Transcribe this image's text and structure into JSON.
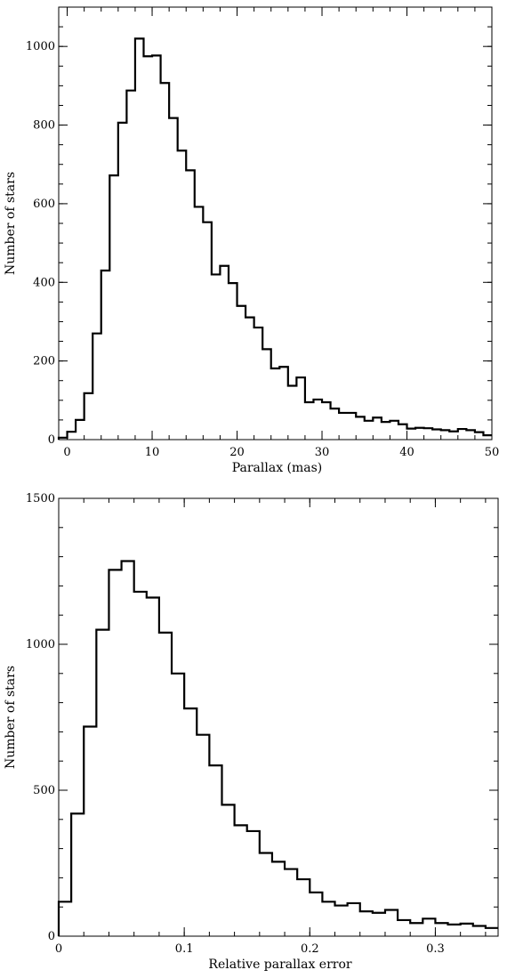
{
  "colors": {
    "line": "#000000",
    "background": "#ffffff"
  },
  "chart_data": [
    {
      "type": "histogram",
      "xlabel": "Parallax (mas)",
      "ylabel": "Number of stars",
      "xlim": [
        -1,
        50
      ],
      "ylim": [
        0,
        1100
      ],
      "x_major_ticks": [
        0,
        10,
        20,
        30,
        40,
        50
      ],
      "x_tick_labels": [
        "0",
        "10",
        "20",
        "30",
        "40",
        "50"
      ],
      "x_minor_step": 2,
      "y_major_ticks": [
        0,
        200,
        400,
        600,
        800,
        1000
      ],
      "y_tick_labels": [
        "0",
        "200",
        "400",
        "600",
        "800",
        "1000"
      ],
      "y_minor_step": 50,
      "bin_edges": [
        -1,
        0,
        1,
        2,
        3,
        4,
        5,
        6,
        7,
        8,
        9,
        10,
        11,
        12,
        13,
        14,
        15,
        16,
        17,
        18,
        19,
        20,
        21,
        22,
        23,
        24,
        25,
        26,
        27,
        28,
        29,
        30,
        31,
        32,
        33,
        34,
        35,
        36,
        37,
        38,
        39,
        40,
        41,
        42,
        43,
        44,
        45,
        46,
        47,
        48,
        49,
        50
      ],
      "counts": [
        5,
        20,
        50,
        118,
        270,
        430,
        672,
        806,
        888,
        1020,
        975,
        977,
        907,
        818,
        735,
        685,
        592,
        553,
        420,
        442,
        398,
        340,
        311,
        285,
        230,
        181,
        185,
        137,
        158,
        95,
        102,
        95,
        79,
        68,
        68,
        58,
        48,
        56,
        45,
        48,
        39,
        28,
        30,
        29,
        26,
        24,
        21,
        27,
        24,
        19,
        11
      ],
      "grid": false
    },
    {
      "type": "histogram",
      "xlabel": "Relative parallax error",
      "ylabel": "Number of stars",
      "xlim": [
        0,
        0.35
      ],
      "ylim": [
        0,
        1500
      ],
      "x_major_ticks": [
        0,
        0.1,
        0.2,
        0.3
      ],
      "x_tick_labels": [
        "0",
        "0.1",
        "0.2",
        "0.3"
      ],
      "x_minor_step": 0.02,
      "y_major_ticks": [
        0,
        500,
        1000,
        1500
      ],
      "y_tick_labels": [
        "0",
        "500",
        "1000",
        "1500"
      ],
      "y_minor_step": 100,
      "bin_width": 0.01,
      "counts": [
        118,
        420,
        718,
        1050,
        1255,
        1285,
        1180,
        1160,
        1040,
        900,
        780,
        690,
        585,
        450,
        380,
        360,
        285,
        255,
        230,
        195,
        150,
        118,
        105,
        113,
        85,
        80,
        90,
        55,
        45,
        60,
        45,
        40,
        43,
        35,
        28
      ],
      "grid": false
    }
  ]
}
